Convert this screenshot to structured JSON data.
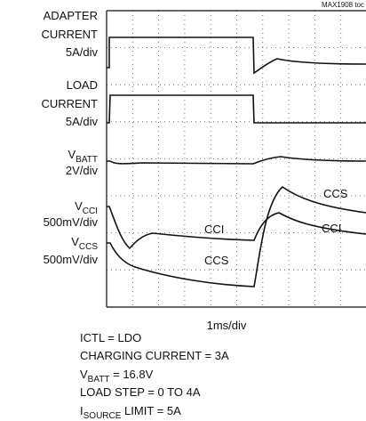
{
  "header": {
    "figure_id": "MAX1908 toc"
  },
  "channels": [
    {
      "name": [
        "ADAPTER",
        "CURRENT"
      ],
      "scale": "5A/div"
    },
    {
      "name": [
        "LOAD",
        "CURRENT"
      ],
      "scale": "5A/div"
    },
    {
      "symbol": {
        "base": "V",
        "sub": "BATT"
      },
      "scale": "2V/div"
    },
    {
      "symbol": {
        "base": "V",
        "sub": "CCI"
      },
      "scale": "500mV/div"
    },
    {
      "symbol": {
        "base": "V",
        "sub": "CCS"
      },
      "scale": "500mV/div"
    }
  ],
  "trace_labels": [
    "CCI",
    "CCS",
    "CCS",
    "CCI"
  ],
  "time_scale": "1ms/div",
  "conditions": [
    {
      "text": "ICTL = LDO"
    },
    {
      "text": "CHARGING CURRENT = 3A"
    },
    {
      "base": "V",
      "sub": "BATT",
      "rest": " = 16.8V"
    },
    {
      "text": "LOAD STEP = 0 TO 4A"
    },
    {
      "base": "I",
      "sub": "SOURCE",
      "rest": " LIMIT = 5A"
    }
  ]
}
